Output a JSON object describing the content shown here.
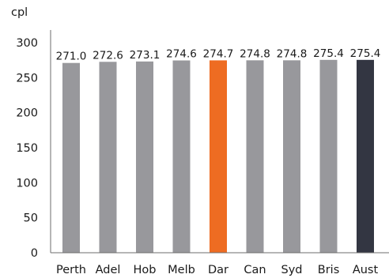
{
  "chart_data": {
    "type": "bar",
    "y_unit_label": "cpl",
    "categories": [
      "Perth",
      "Adel",
      "Hob",
      "Melb",
      "Dar",
      "Can",
      "Syd",
      "Bris",
      "Aust"
    ],
    "values": [
      271.0,
      272.6,
      273.1,
      274.6,
      274.7,
      274.8,
      274.8,
      275.4,
      275.4
    ],
    "data_labels": [
      "271.0",
      "272.6",
      "273.1",
      "274.6",
      "274.7",
      "274.8",
      "274.8",
      "275.4",
      "275.4"
    ],
    "bar_colors": [
      "#98989c",
      "#98989c",
      "#98989c",
      "#98989c",
      "#ee6c22",
      "#98989c",
      "#98989c",
      "#98989c",
      "#333642"
    ],
    "ylim": [
      0,
      300
    ],
    "y_ticks": [
      0,
      50,
      100,
      150,
      200,
      250,
      300
    ],
    "y_tick_labels": [
      "0",
      "50",
      "100",
      "150",
      "200",
      "250",
      "300"
    ],
    "grid": false,
    "legend": "none"
  }
}
